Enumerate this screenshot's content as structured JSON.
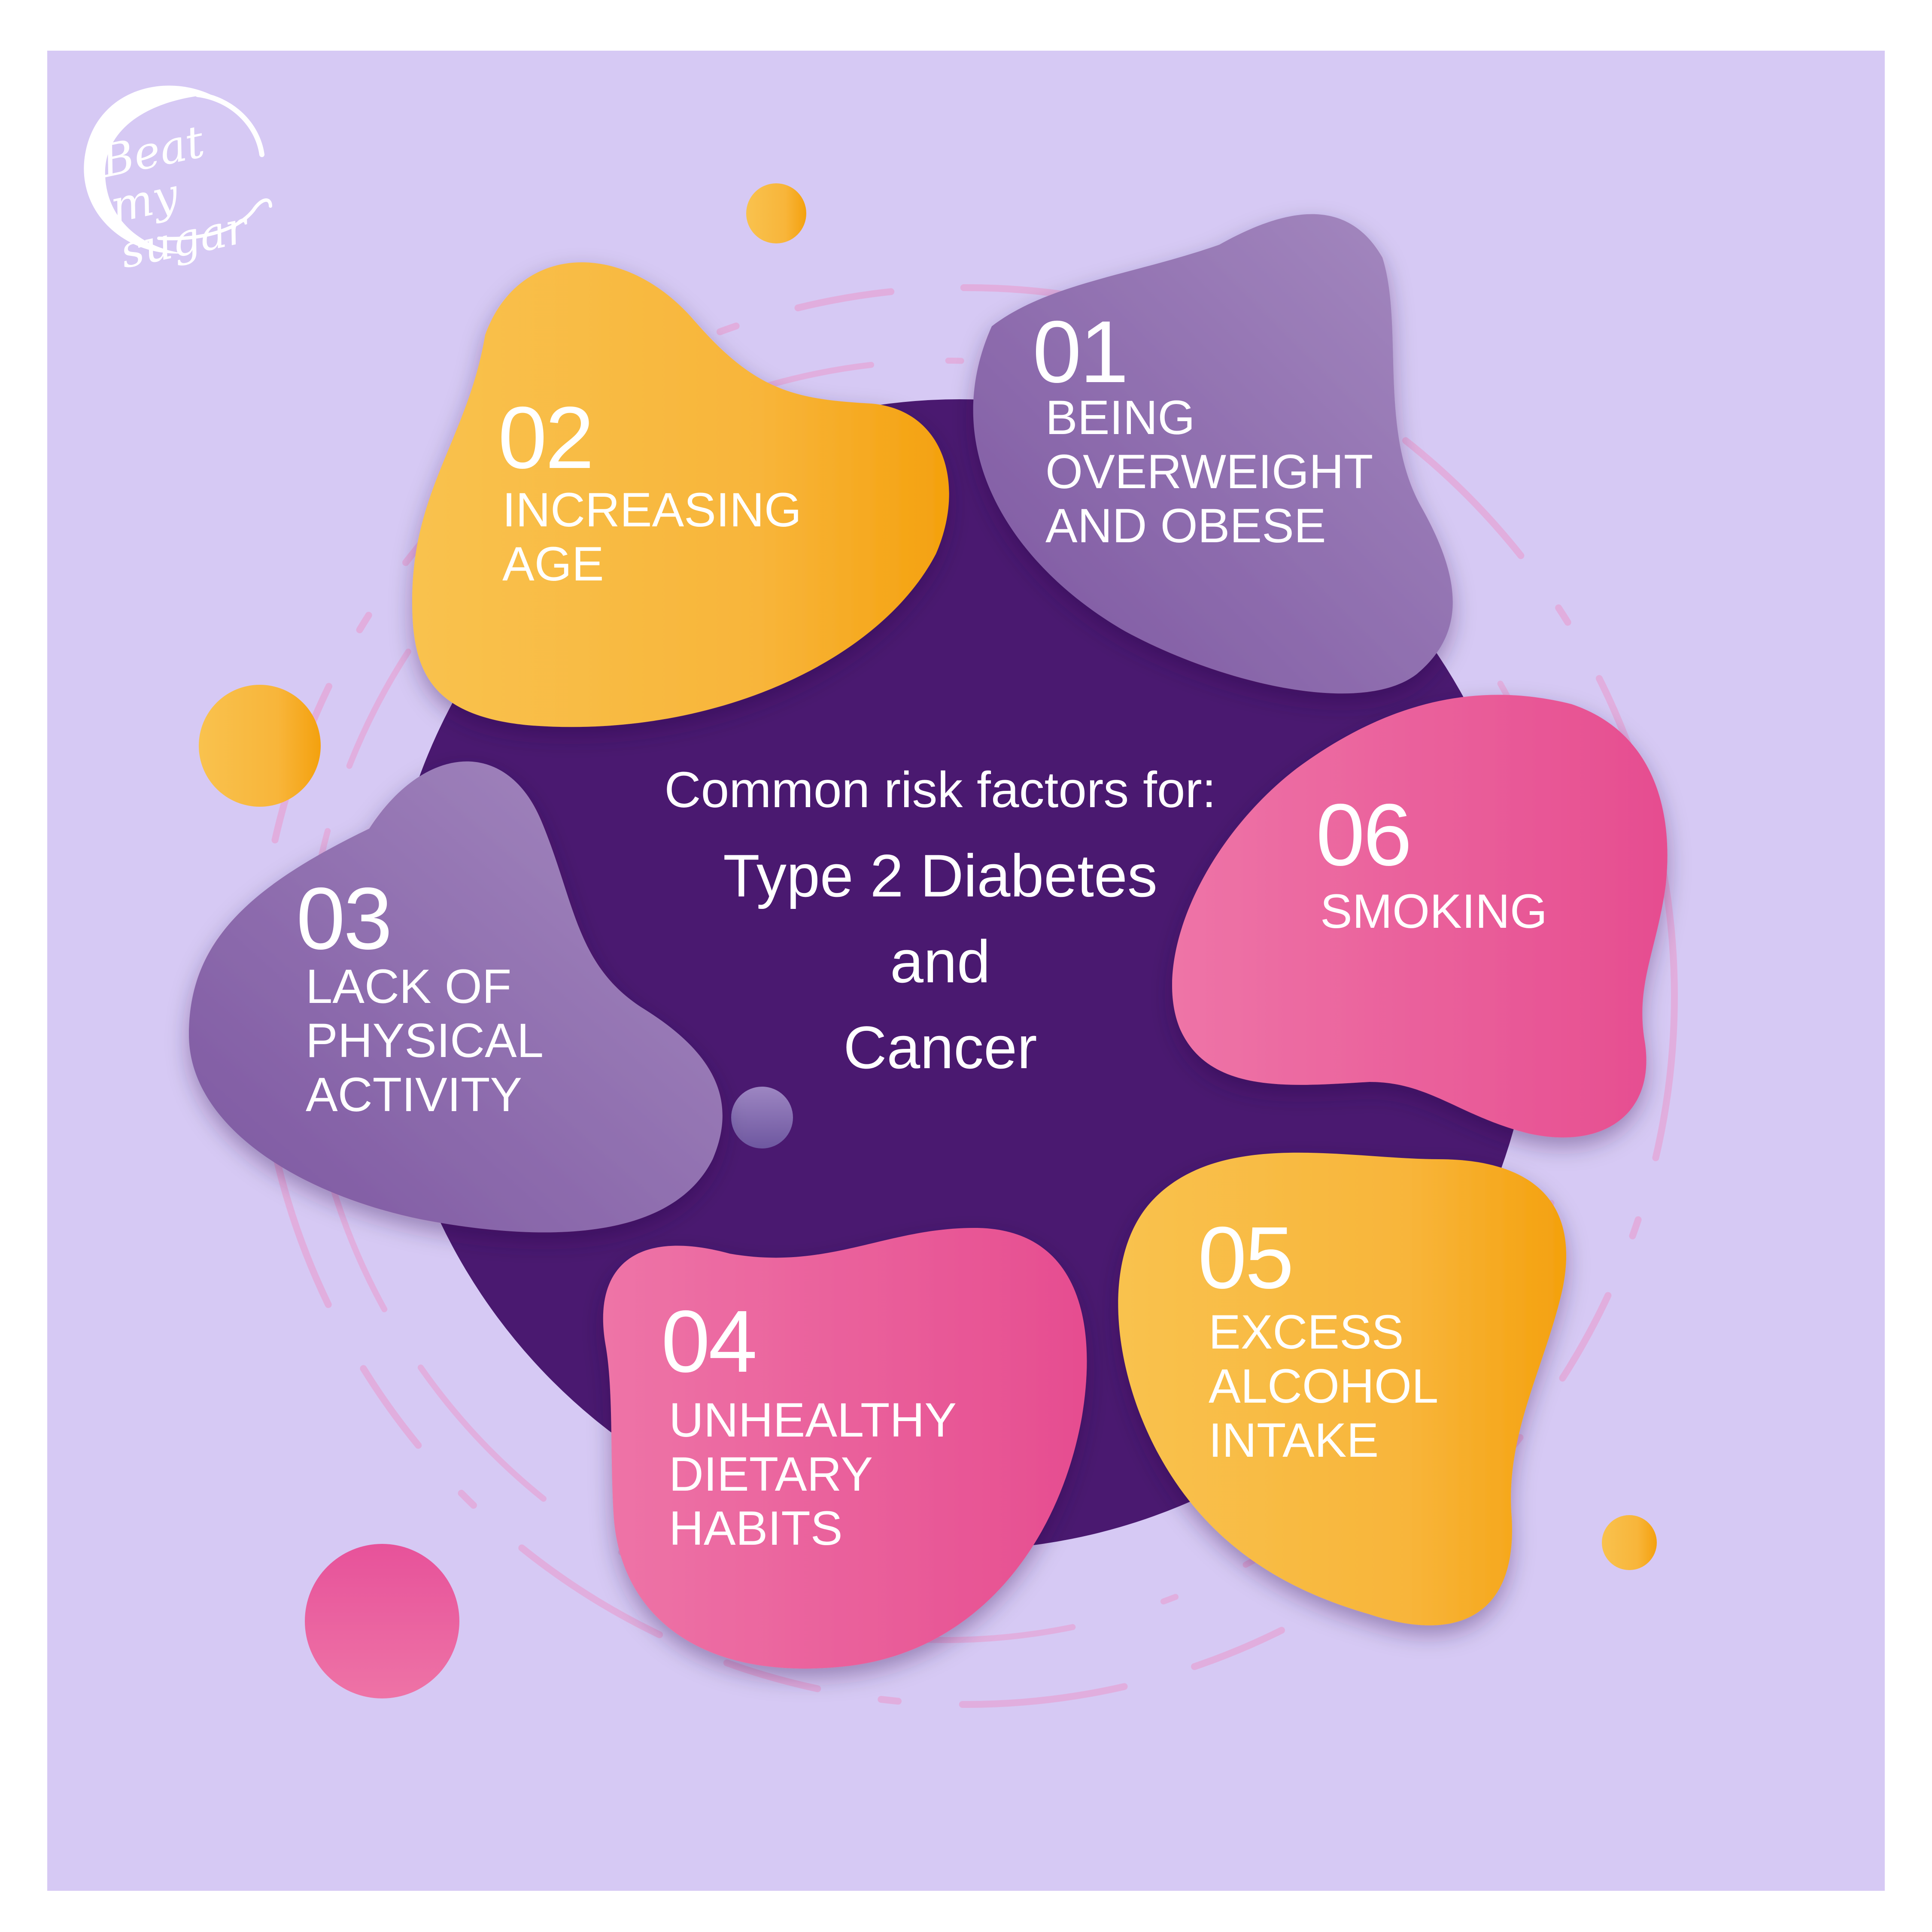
{
  "brand": {
    "logo_text": "Beat my sugar"
  },
  "heading": "Common risk factors for:",
  "title_lines": [
    "Type 2 Diabetes",
    "and",
    "Cancer"
  ],
  "factors": [
    {
      "number": "01",
      "label": "BEING\nOVERWEIGHT\nAND OBESE"
    },
    {
      "number": "02",
      "label": "INCREASING\nAGE"
    },
    {
      "number": "03",
      "label": "LACK OF\nPHYSICAL\nACTIVITY"
    },
    {
      "number": "04",
      "label": "UNHEALTHY\nDIETARY\nHABITS"
    },
    {
      "number": "05",
      "label": "EXCESS\nALCOHOL\nINTAKE"
    },
    {
      "number": "06",
      "label": "SMOKING"
    }
  ],
  "colors": {
    "background": "#d6c9f4",
    "center_circle": "#4a1a70",
    "yellow_blob": "#f8b93a",
    "purple_blob": "#8f6aae",
    "pink_blob": "#e9589a",
    "ring": "#e4a8d8"
  }
}
